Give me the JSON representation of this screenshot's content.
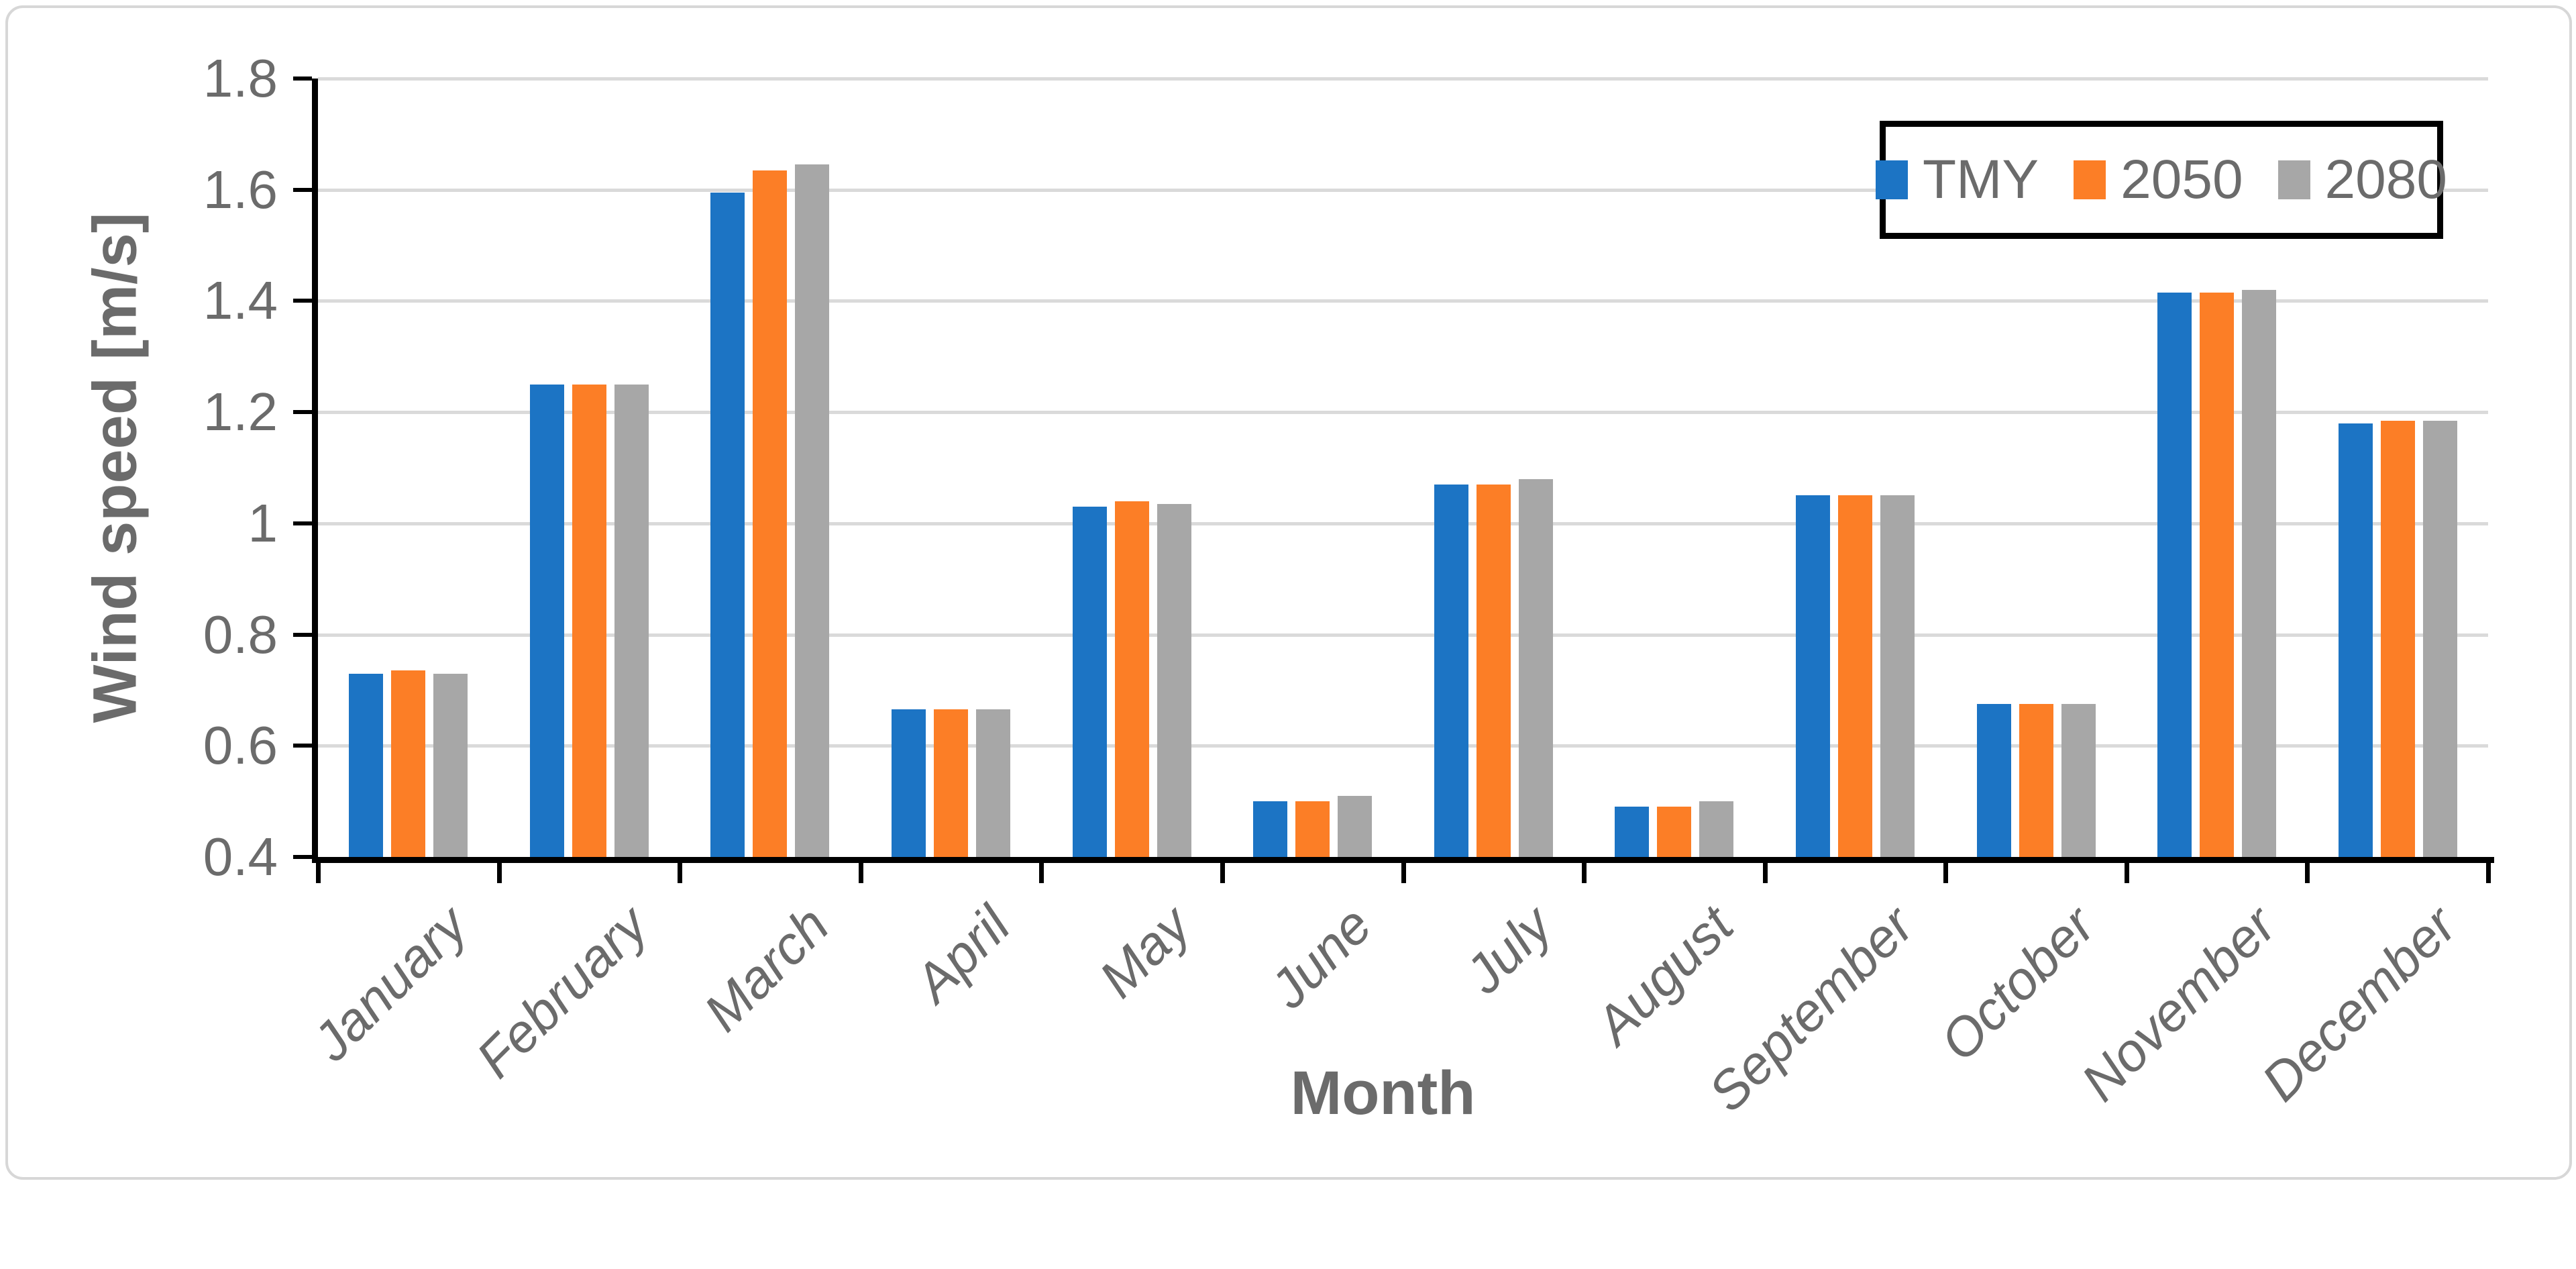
{
  "chart_data": {
    "type": "bar",
    "title": "",
    "xlabel": "Month",
    "ylabel": "Wind speed [m/s]",
    "categories": [
      "January",
      "February",
      "March",
      "April",
      "May",
      "June",
      "July",
      "August",
      "September",
      "October",
      "November",
      "December"
    ],
    "series": [
      {
        "name": "TMY",
        "color": "#1C74C4",
        "values": [
          0.73,
          1.25,
          1.595,
          0.665,
          1.03,
          0.5,
          1.07,
          0.49,
          1.05,
          0.675,
          1.415,
          1.18
        ]
      },
      {
        "name": "2050",
        "color": "#FC7E26",
        "values": [
          0.735,
          1.25,
          1.635,
          0.665,
          1.04,
          0.5,
          1.07,
          0.49,
          1.05,
          0.675,
          1.415,
          1.185
        ]
      },
      {
        "name": "2080",
        "color": "#A7A7A7",
        "values": [
          0.73,
          1.25,
          1.645,
          0.665,
          1.035,
          0.51,
          1.08,
          0.5,
          1.05,
          0.675,
          1.42,
          1.185
        ]
      }
    ],
    "ylim": [
      0.4,
      1.8
    ],
    "ytick_step": 0.2,
    "ytick_labels": [
      "0.4",
      "0.6",
      "0.8",
      "1",
      "1.2",
      "1.4",
      "1.6",
      "1.8"
    ],
    "grid": true,
    "legend_position": "top-right",
    "colors": {
      "axis_line": "#000000",
      "gridline": "#dadada",
      "text": "#6b6b6b",
      "legend_border": "#000000",
      "figure_border": "#d7d7d7"
    }
  }
}
